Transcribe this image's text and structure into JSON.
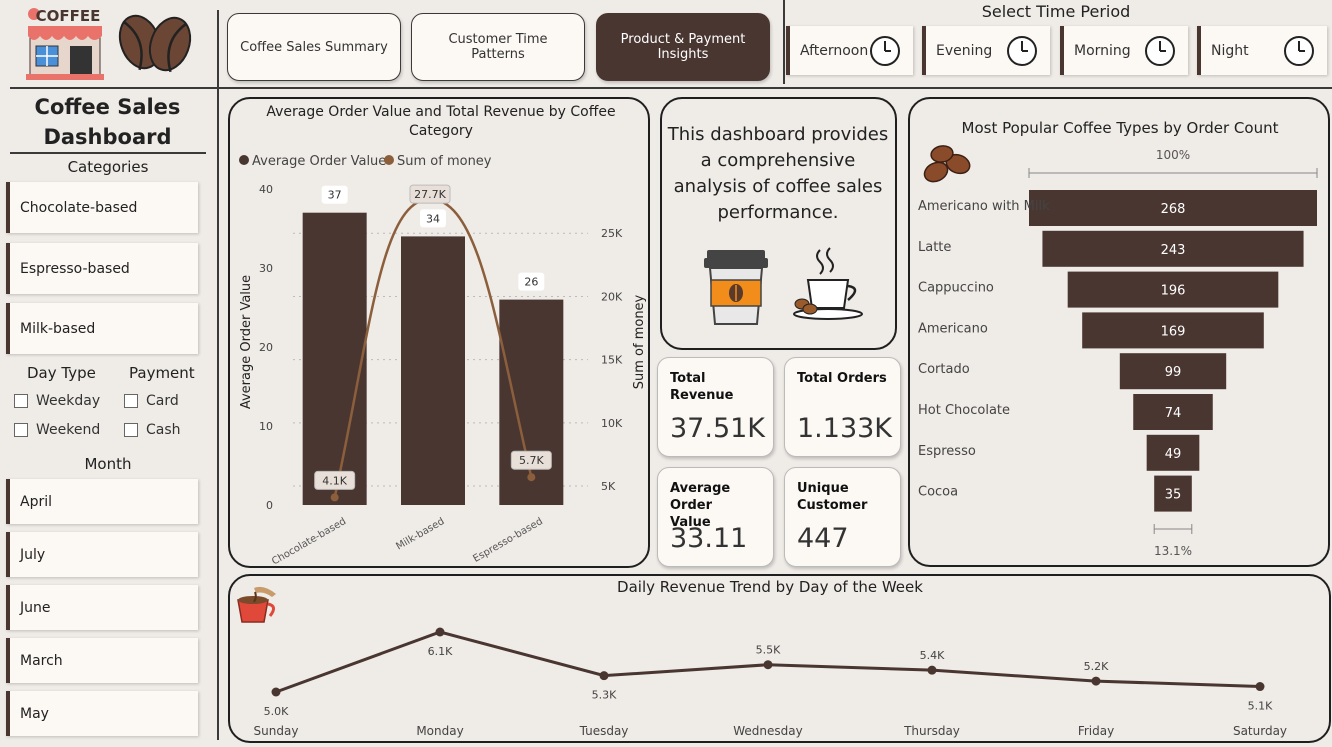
{
  "logo": {
    "shop_sign": "COFFEE"
  },
  "nav": {
    "tabs": [
      {
        "label": "Coffee Sales Summary",
        "active": false
      },
      {
        "label": "Customer Time Patterns",
        "active": false
      },
      {
        "label": "Product & Payment Insights",
        "active": true
      }
    ]
  },
  "time_period": {
    "title": "Select Time Period",
    "options": [
      "Afternoon",
      "Evening",
      "Morning",
      "Night"
    ]
  },
  "sidebar": {
    "title_line1": "Coffee Sales",
    "title_line2": "Dashboard",
    "categories_label": "Categories",
    "categories": [
      "Chocolate-based",
      "Espresso-based",
      "Milk-based"
    ],
    "day_type_label": "Day Type",
    "day_types": [
      "Weekday",
      "Weekend"
    ],
    "payment_label": "Payment",
    "payments": [
      "Card",
      "Cash"
    ],
    "month_label": "Month",
    "months": [
      "April",
      "July",
      "June",
      "March",
      "May"
    ]
  },
  "description": "This dashboard provides a comprehensive analysis of coffee sales performance.",
  "kpis": [
    {
      "label": "Total Revenue",
      "value": "37.51K"
    },
    {
      "label": "Total Orders",
      "value": "1.133K"
    },
    {
      "label": "Average Order Value",
      "value": "33.11"
    },
    {
      "label": "Unique Customer",
      "value": "447"
    }
  ],
  "colors": {
    "dark_brown": "#4a3631",
    "line_brown": "#8b5e3c",
    "panel_bg": "#fcf8f4"
  },
  "chart_data": [
    {
      "type": "bar",
      "title": "Average Order Value and Total Revenue by Coffee Category",
      "legend": [
        "Average Order Value",
        "Sum of money"
      ],
      "categories": [
        "Chocolate-based",
        "Milk-based",
        "Espresso-based"
      ],
      "series": [
        {
          "name": "Average Order Value",
          "kind": "bar",
          "values": [
            37,
            34,
            26
          ],
          "labels": [
            "37",
            "34",
            "26"
          ]
        },
        {
          "name": "Sum of money",
          "kind": "line",
          "values": [
            4100,
            27700,
            5700
          ],
          "labels": [
            "4.1K",
            "27.7K",
            "5.7K"
          ]
        }
      ],
      "ylabel": "Average Order Value",
      "y2label": "Sum of money",
      "ylim": [
        0,
        40
      ],
      "yticks": [
        "0",
        "10",
        "20",
        "30",
        "40"
      ],
      "y2lim": [
        3500,
        28500
      ],
      "y2ticks": [
        {
          "v": 5000,
          "l": "5K"
        },
        {
          "v": 10000,
          "l": "10K"
        },
        {
          "v": 15000,
          "l": "15K"
        },
        {
          "v": 20000,
          "l": "20K"
        },
        {
          "v": 25000,
          "l": "25K"
        }
      ]
    },
    {
      "type": "bar",
      "orientation": "funnel",
      "title": "Most Popular Coffee Types by Order Count",
      "top_label": "100%",
      "bottom_label": "13.1%",
      "categories": [
        "Americano with Milk",
        "Latte",
        "Cappuccino",
        "Americano",
        "Cortado",
        "Hot Chocolate",
        "Espresso",
        "Cocoa"
      ],
      "values": [
        268,
        243,
        196,
        169,
        99,
        74,
        49,
        35
      ]
    },
    {
      "type": "line",
      "title": "Daily Revenue Trend by Day of the Week",
      "categories": [
        "Sunday",
        "Monday",
        "Tuesday",
        "Wednesday",
        "Thursday",
        "Friday",
        "Saturday"
      ],
      "values": [
        5000,
        6100,
        5300,
        5500,
        5400,
        5200,
        5100
      ],
      "labels": [
        "5.0K",
        "6.1K",
        "5.3K",
        "5.5K",
        "5.4K",
        "5.2K",
        "5.1K"
      ]
    }
  ]
}
